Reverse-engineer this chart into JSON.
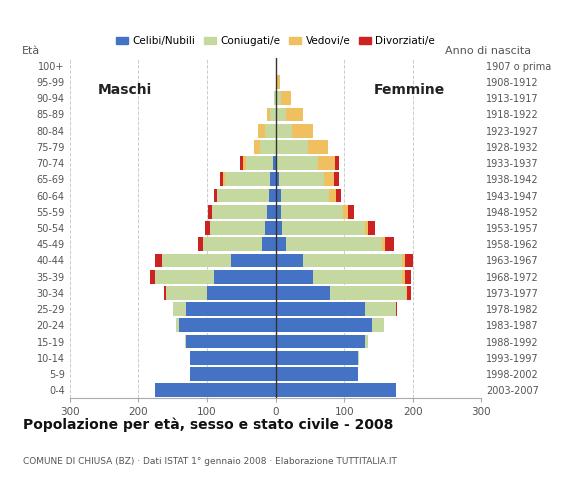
{
  "age_groups": [
    "0-4",
    "5-9",
    "10-14",
    "15-19",
    "20-24",
    "25-29",
    "30-34",
    "35-39",
    "40-44",
    "45-49",
    "50-54",
    "55-59",
    "60-64",
    "65-69",
    "70-74",
    "75-79",
    "80-84",
    "85-89",
    "90-94",
    "95-99",
    "100+"
  ],
  "birth_years": [
    "2003-2007",
    "1998-2002",
    "1993-1997",
    "1988-1992",
    "1983-1987",
    "1978-1982",
    "1973-1977",
    "1968-1972",
    "1963-1967",
    "1958-1962",
    "1953-1957",
    "1948-1952",
    "1943-1947",
    "1938-1942",
    "1933-1937",
    "1928-1932",
    "1923-1927",
    "1918-1922",
    "1913-1917",
    "1908-1912",
    "1907 o prima"
  ],
  "males": {
    "celibi": [
      175,
      125,
      125,
      130,
      140,
      130,
      100,
      90,
      65,
      20,
      15,
      12,
      10,
      8,
      3,
      0,
      0,
      0,
      0,
      0,
      0
    ],
    "coniugati": [
      0,
      0,
      0,
      2,
      5,
      20,
      60,
      85,
      100,
      85,
      80,
      80,
      75,
      65,
      40,
      22,
      15,
      8,
      2,
      0,
      0
    ],
    "vedovi": [
      0,
      0,
      0,
      0,
      0,
      0,
      0,
      0,
      0,
      0,
      0,
      0,
      0,
      3,
      5,
      10,
      10,
      5,
      0,
      0,
      0
    ],
    "divorziati": [
      0,
      0,
      0,
      0,
      0,
      0,
      2,
      8,
      10,
      8,
      7,
      7,
      5,
      5,
      3,
      0,
      0,
      0,
      0,
      0,
      0
    ]
  },
  "females": {
    "nubili": [
      175,
      120,
      120,
      130,
      140,
      130,
      80,
      55,
      40,
      15,
      10,
      8,
      8,
      5,
      2,
      2,
      2,
      0,
      0,
      0,
      0
    ],
    "coniugate": [
      0,
      0,
      2,
      5,
      18,
      45,
      110,
      130,
      145,
      140,
      120,
      90,
      70,
      65,
      60,
      45,
      22,
      15,
      8,
      2,
      0
    ],
    "vedove": [
      0,
      0,
      0,
      0,
      0,
      0,
      2,
      3,
      3,
      5,
      5,
      8,
      10,
      15,
      25,
      30,
      30,
      25,
      15,
      5,
      0
    ],
    "divorziate": [
      0,
      0,
      0,
      0,
      0,
      2,
      5,
      10,
      12,
      12,
      10,
      8,
      7,
      7,
      5,
      0,
      0,
      0,
      0,
      0,
      0
    ]
  },
  "colors": {
    "celibi": "#4472c4",
    "coniugati": "#c5d8a0",
    "vedovi": "#f0c060",
    "divorziati": "#cc2222"
  },
  "xlim": 300,
  "title": "Popolazione per età, sesso e stato civile - 2008",
  "subtitle": "COMUNE DI CHIUSA (BZ) · Dati ISTAT 1° gennaio 2008 · Elaborazione TUTTITALIA.IT",
  "legend_labels": [
    "Celibi/Nubili",
    "Coniugati/e",
    "Vedovi/e",
    "Divorziati/e"
  ],
  "label_eta": "Età",
  "label_anno": "Anno di nascita",
  "label_maschi": "Maschi",
  "label_femmine": "Femmine",
  "xticks": [
    -300,
    -200,
    -100,
    0,
    100,
    200,
    300
  ],
  "bg_color": "#ffffff",
  "grid_color": "#cccccc",
  "spine_color": "#aaaaaa",
  "text_color": "#555555",
  "center_line_color": "#333333"
}
